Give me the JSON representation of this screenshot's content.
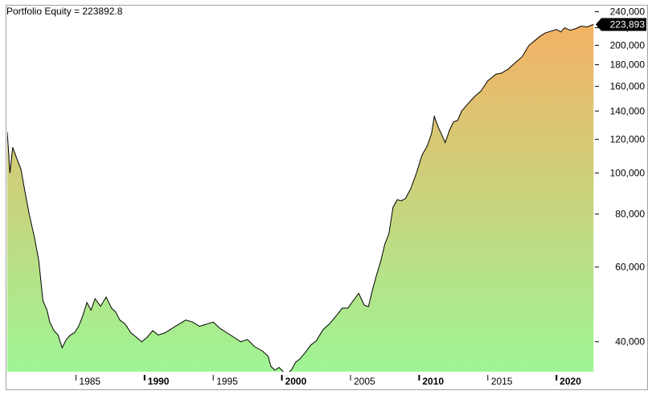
{
  "chart_data": {
    "type": "area",
    "title": "Portfolio Equity = 223892.8",
    "last_value_label": "223,893",
    "y_scale": "log",
    "ylim": [
      34000,
      247000
    ],
    "xlim": [
      1980.0,
      2022.8
    ],
    "y_ticks": [
      {
        "value": 240000,
        "label": "240,000"
      },
      {
        "value": 220000,
        "label": "220,000"
      },
      {
        "value": 200000,
        "label": "200,000"
      },
      {
        "value": 180000,
        "label": "180,000"
      },
      {
        "value": 160000,
        "label": "160,000"
      },
      {
        "value": 140000,
        "label": "140,000"
      },
      {
        "value": 120000,
        "label": "120,000"
      },
      {
        "value": 100000,
        "label": "100,000"
      },
      {
        "value": 80000,
        "label": "80,000"
      },
      {
        "value": 60000,
        "label": "60,000"
      },
      {
        "value": 40000,
        "label": "40,000"
      }
    ],
    "x_ticks": [
      {
        "value": 1985,
        "label": "1985",
        "bold": false
      },
      {
        "value": 1990,
        "label": "1990",
        "bold": true
      },
      {
        "value": 1995,
        "label": "1995",
        "bold": false
      },
      {
        "value": 2000,
        "label": "2000",
        "bold": true
      },
      {
        "value": 2005,
        "label": "2005",
        "bold": false
      },
      {
        "value": 2010,
        "label": "2010",
        "bold": true
      },
      {
        "value": 2015,
        "label": "2015",
        "bold": false
      },
      {
        "value": 2020,
        "label": "2020",
        "bold": true
      }
    ],
    "grid": false,
    "fill_gradient": {
      "bottom": "#9ef595",
      "top": "#f8ae62"
    },
    "line_color": "#000000",
    "series": [
      {
        "x": [
          1980.0,
          1980.2,
          1980.4,
          1980.7,
          1981.0,
          1981.3,
          1981.6,
          1982.0,
          1982.3,
          1982.6,
          1982.9,
          1983.1,
          1983.4,
          1983.7,
          1984.0,
          1984.3,
          1984.6,
          1984.9,
          1985.2,
          1985.5,
          1985.8,
          1986.1,
          1986.4,
          1986.8,
          1987.2,
          1987.6,
          1987.9,
          1988.2,
          1988.6,
          1989.0,
          1989.4,
          1989.8,
          1990.2,
          1990.6,
          1991.0,
          1991.5,
          1992.0,
          1992.5,
          1993.0,
          1993.5,
          1994.0,
          1994.5,
          1995.0,
          1995.5,
          1996.0,
          1996.5,
          1997.0,
          1997.5,
          1998.0,
          1998.3,
          1998.6,
          1999.0,
          1999.2,
          1999.5,
          1999.8,
          2000.1,
          2000.4,
          2000.7,
          2001.0,
          2001.3,
          2001.7,
          2002.1,
          2002.5,
          2003.0,
          2003.5,
          2004.0,
          2004.4,
          2004.8,
          2005.2,
          2005.6,
          2006.0,
          2006.3,
          2006.6,
          2006.9,
          2007.2,
          2007.5,
          2007.8,
          2008.1,
          2008.4,
          2008.7,
          2009.0,
          2009.4,
          2009.8,
          2010.2,
          2010.6,
          2010.9,
          2011.1,
          2011.4,
          2011.6,
          2011.9,
          2012.2,
          2012.5,
          2012.8,
          2013.1,
          2013.5,
          2014.0,
          2014.5,
          2015.0,
          2015.3,
          2015.6,
          2016.0,
          2016.5,
          2017.0,
          2017.5,
          2018.0,
          2018.4,
          2018.8,
          2019.2,
          2019.6,
          2020.0,
          2020.3,
          2020.6,
          2021.0,
          2021.4,
          2021.8,
          2022.2,
          2022.7
        ],
        "y": [
          125000,
          100000,
          115000,
          108000,
          102000,
          90000,
          80000,
          70000,
          62000,
          50000,
          47500,
          44500,
          42500,
          41500,
          38700,
          40500,
          41500,
          42000,
          43500,
          46000,
          49500,
          47500,
          50500,
          48500,
          51000,
          48000,
          47000,
          45000,
          44000,
          42000,
          41000,
          40000,
          41000,
          42500,
          41500,
          42000,
          43000,
          44000,
          45000,
          44500,
          43500,
          44000,
          44500,
          43000,
          42000,
          41000,
          40000,
          40500,
          39000,
          38500,
          38000,
          37000,
          35000,
          34300,
          34800,
          34000,
          33700,
          34300,
          35800,
          36400,
          37700,
          39300,
          40200,
          42700,
          44200,
          46200,
          48000,
          48000,
          50000,
          52000,
          48800,
          48400,
          53000,
          57500,
          62000,
          68000,
          72000,
          83000,
          86500,
          86000,
          87000,
          92000,
          100000,
          110000,
          116000,
          124000,
          136000,
          128000,
          124000,
          118000,
          126000,
          132000,
          133000,
          140000,
          145000,
          151000,
          156000,
          165000,
          168000,
          171000,
          172000,
          176000,
          182000,
          188000,
          200000,
          205000,
          210000,
          214000,
          216000,
          218000,
          215000,
          220000,
          217000,
          219000,
          222000,
          221000,
          223893
        ]
      }
    ]
  }
}
